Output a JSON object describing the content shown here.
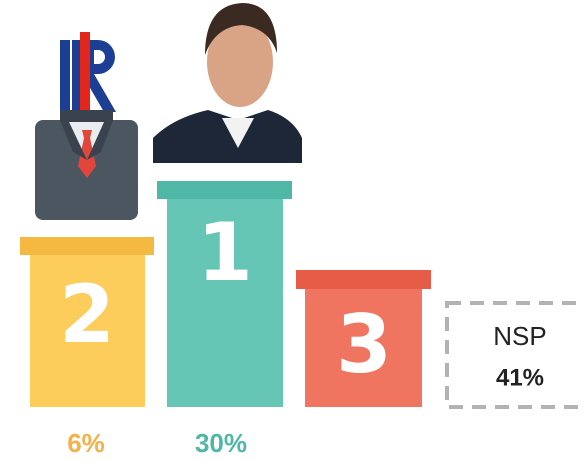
{
  "podium": [
    {
      "rank": "2",
      "share": "6%"
    },
    {
      "rank": "1",
      "share": "30%"
    },
    {
      "rank": "3"
    }
  ],
  "undecided": {
    "label": "NSP",
    "share": "41%"
  }
}
